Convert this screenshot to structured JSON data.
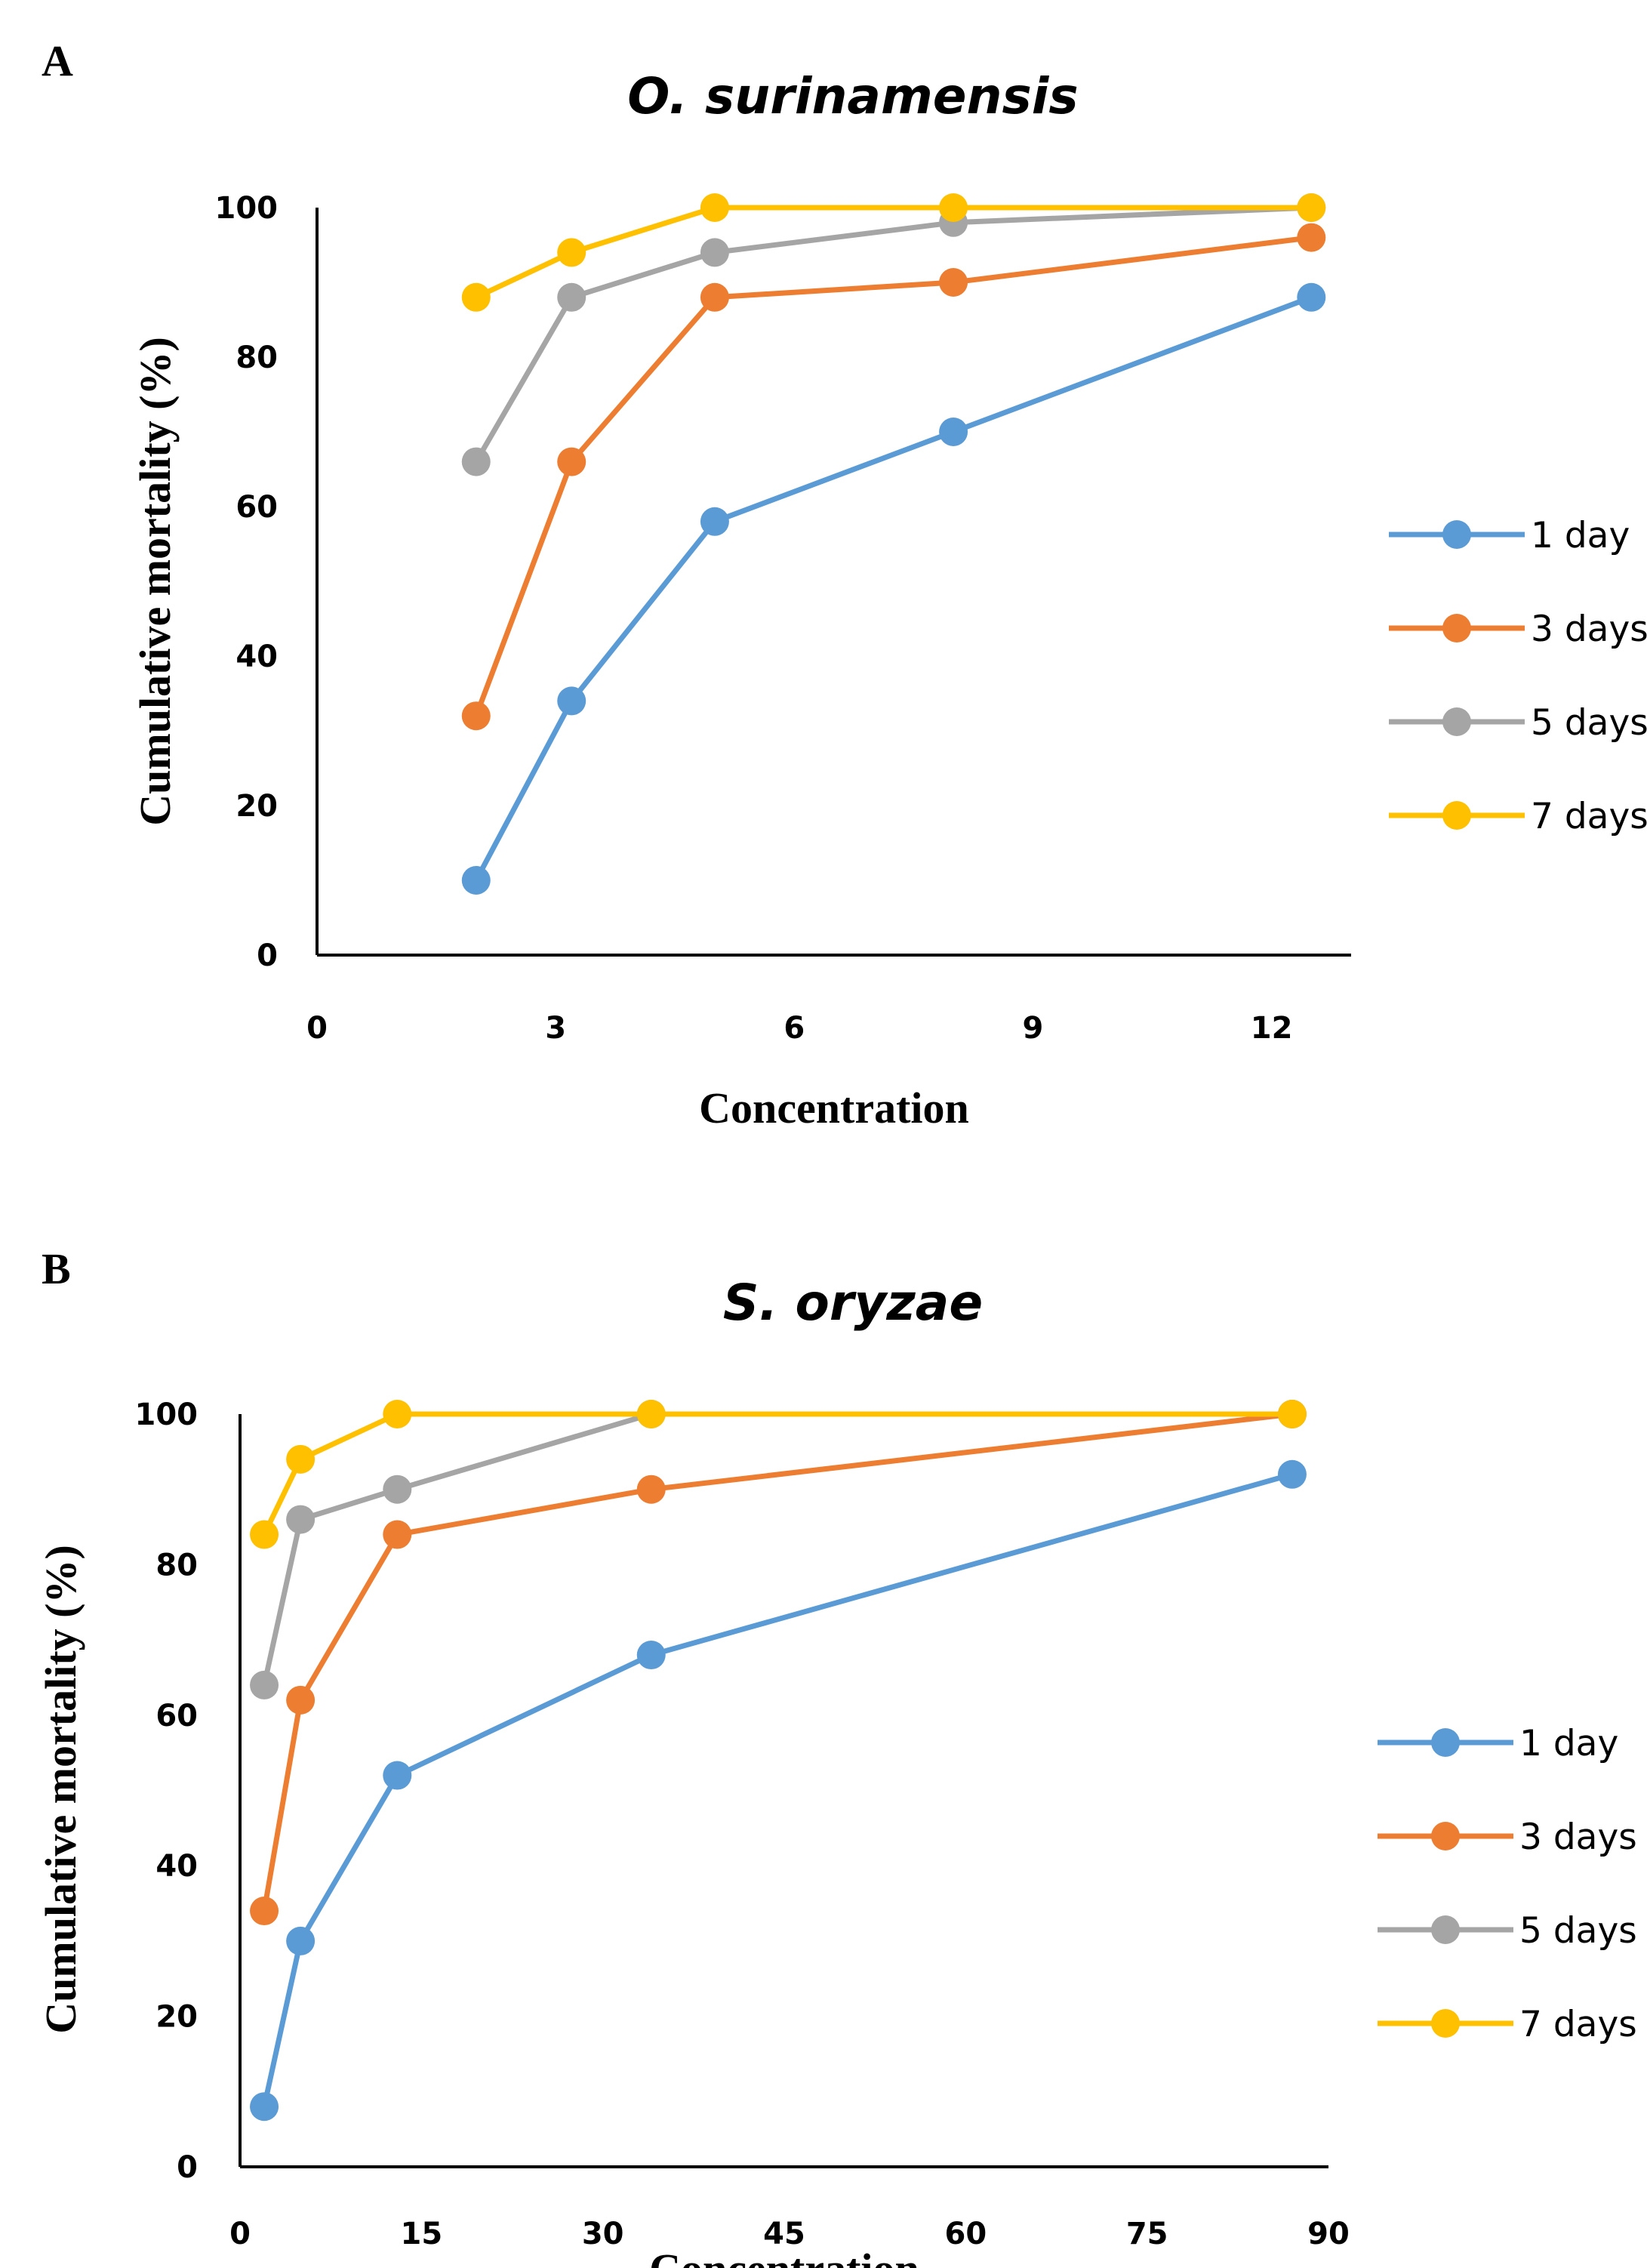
{
  "figure": {
    "panels": [
      {
        "letter": "A"
      },
      {
        "letter": "B"
      }
    ]
  },
  "chart_data": [
    {
      "type": "line",
      "title": "O. surinamensis",
      "xlabel": "Concentration",
      "ylabel": "Cumulative mortality (%)",
      "xlim": [
        0,
        13
      ],
      "ylim": [
        0,
        100
      ],
      "xticks": [
        0,
        3,
        6,
        9,
        12
      ],
      "yticks": [
        0,
        20,
        40,
        60,
        80,
        100
      ],
      "grid": false,
      "legend": "right",
      "x": [
        2,
        3.2,
        5,
        8,
        12.5
      ],
      "series": [
        {
          "name": "1 day",
          "color": "#5B9BD5",
          "values": [
            10,
            34,
            58,
            70,
            88
          ]
        },
        {
          "name": "3 days",
          "color": "#ED7D31",
          "values": [
            32,
            66,
            88,
            90,
            96
          ]
        },
        {
          "name": "5 days",
          "color": "#A5A5A5",
          "values": [
            66,
            88,
            94,
            98,
            100
          ]
        },
        {
          "name": "7 days",
          "color": "#FFC000",
          "values": [
            88,
            94,
            100,
            100,
            100
          ]
        }
      ]
    },
    {
      "type": "line",
      "title": "S. oryzae",
      "xlabel": "Concentration",
      "ylabel": "Cumulative mortality (%)",
      "xlim": [
        0,
        90
      ],
      "ylim": [
        0,
        100
      ],
      "xticks": [
        0,
        15,
        30,
        45,
        60,
        75,
        90
      ],
      "yticks": [
        0,
        20,
        40,
        60,
        80,
        100
      ],
      "grid": false,
      "legend": "right",
      "x": [
        2,
        5,
        13,
        34,
        87
      ],
      "series": [
        {
          "name": "1 day",
          "color": "#5B9BD5",
          "values": [
            8,
            30,
            52,
            68,
            92
          ]
        },
        {
          "name": "3 days",
          "color": "#ED7D31",
          "values": [
            34,
            62,
            84,
            90,
            100
          ]
        },
        {
          "name": "5 days",
          "color": "#A5A5A5",
          "values": [
            64,
            86,
            90,
            100,
            100
          ]
        },
        {
          "name": "7 days",
          "color": "#FFC000",
          "values": [
            84,
            94,
            100,
            100,
            100
          ]
        }
      ]
    }
  ]
}
